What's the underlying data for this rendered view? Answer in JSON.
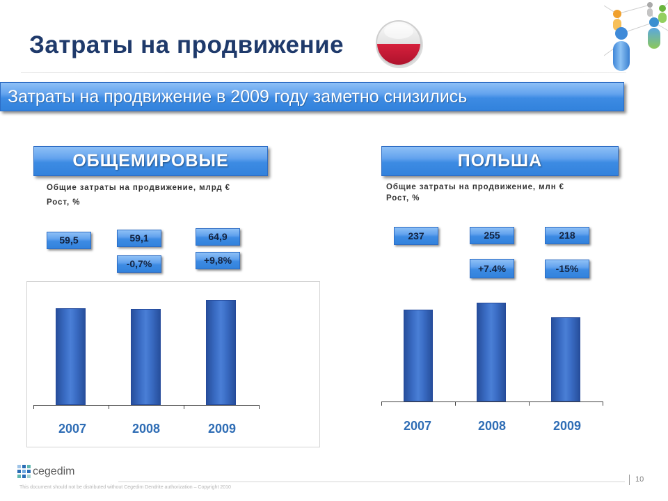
{
  "slide": {
    "title": "Затраты на продвижение",
    "headline": "Затраты на продвижение в 2009 году заметно снизились",
    "logo_text": "cegedim",
    "footer_note": "This document should not be distributed without Cegedim Dendrite authorization – Copyright 2010",
    "page_number": "10"
  },
  "icons": {
    "flag": "poland-flag-icon",
    "decoration": "people-network-icon",
    "logo": "cegedim-logo-icon"
  },
  "colors": {
    "title": "#1f3a6b",
    "banner": "#3d8be3",
    "bar": "#3a6cc4",
    "year_label": "#2f6db5",
    "value_text": "#13233f",
    "flag_red": "#d6203c"
  },
  "chart_data": [
    {
      "type": "bar",
      "title": "ОБЩЕМИРОВЫЕ",
      "subtitle": "Общие затраты на продвижение, млрд €",
      "growth_caption": "Рост, %",
      "categories": [
        "2007",
        "2008",
        "2009"
      ],
      "values": [
        59.5,
        59.1,
        64.9
      ],
      "value_labels": [
        "59,5",
        "59,1",
        "64,9"
      ],
      "growth_labels": [
        null,
        "-0,7%",
        "+9,8%"
      ],
      "ylim": [
        0,
        70
      ],
      "grid": false
    },
    {
      "type": "bar",
      "title": "ПОЛЬША",
      "subtitle": "Общие затраты на продвижение, млн €",
      "growth_caption": "Рост, %",
      "categories": [
        "2007",
        "2008",
        "2009"
      ],
      "values": [
        237,
        255,
        218
      ],
      "value_labels": [
        "237",
        "255",
        "218"
      ],
      "growth_labels": [
        null,
        "+7.4%",
        "-15%"
      ],
      "ylim": [
        0,
        300
      ],
      "grid": false
    }
  ]
}
